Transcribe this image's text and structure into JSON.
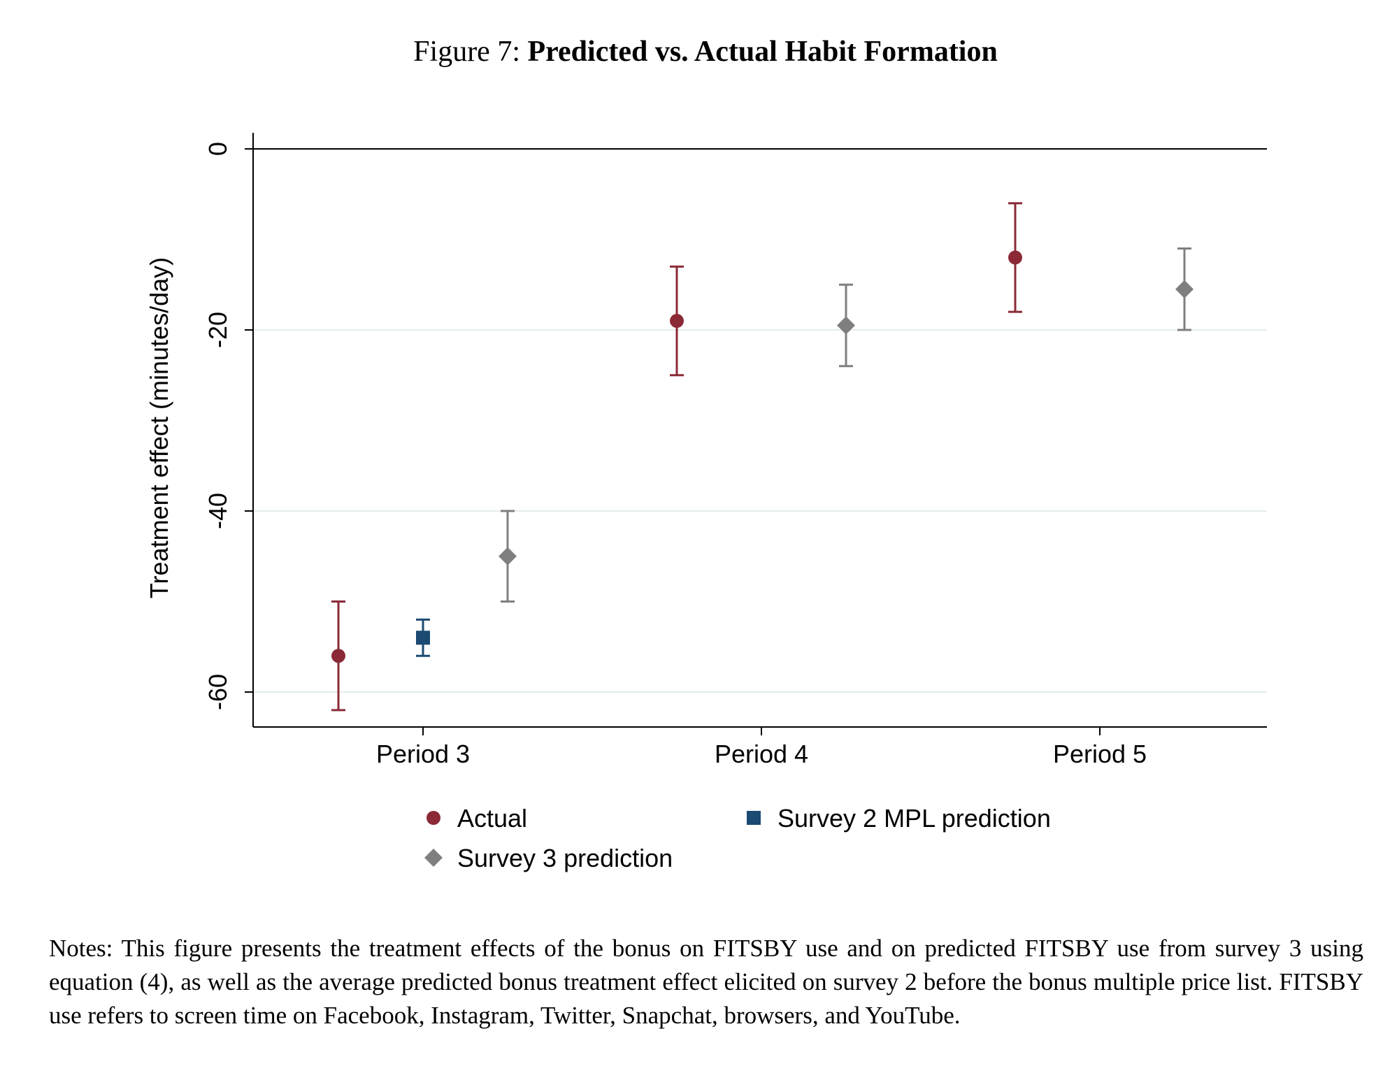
{
  "figure": {
    "label": "Figure 7:",
    "title": "Predicted vs. Actual Habit Formation"
  },
  "chart_data": {
    "type": "scatter",
    "ylabel": "Treatment effect (minutes/day)",
    "xlabel": "",
    "ylim": [
      -64,
      2
    ],
    "yticks": [
      0,
      -20,
      -40,
      -60
    ],
    "grid": true,
    "categories": [
      "Period 3",
      "Period 4",
      "Period 5"
    ],
    "legend_position": "bottom",
    "series": [
      {
        "name": "Actual",
        "marker": "circle",
        "color": "#8b2a36",
        "points": [
          {
            "x": "Period 3",
            "y": -56,
            "lo": -62,
            "hi": -50
          },
          {
            "x": "Period 4",
            "y": -19,
            "lo": -25,
            "hi": -13
          },
          {
            "x": "Period 5",
            "y": -12,
            "lo": -18,
            "hi": -6
          }
        ]
      },
      {
        "name": "Survey 2 MPL prediction",
        "marker": "square",
        "color": "#1b4a72",
        "points": [
          {
            "x": "Period 3",
            "y": -54,
            "lo": -56,
            "hi": -52
          }
        ]
      },
      {
        "name": "Survey 3 prediction",
        "marker": "diamond",
        "color": "#7f7f7f",
        "points": [
          {
            "x": "Period 3",
            "y": -45,
            "lo": -50,
            "hi": -40
          },
          {
            "x": "Period 4",
            "y": -19.5,
            "lo": -24,
            "hi": -15
          },
          {
            "x": "Period 5",
            "y": -15.5,
            "lo": -20,
            "hi": -11
          }
        ]
      }
    ]
  },
  "notes": "Notes: This figure presents the treatment effects of the bonus on FITSBY use and on predicted FITSBY use from survey 3 using equation (4), as well as the average predicted bonus treatment effect elicited on survey 2 before the bonus multiple price list. FITSBY use refers to screen time on Facebook, Instagram, Twitter, Snapchat, browsers, and YouTube."
}
